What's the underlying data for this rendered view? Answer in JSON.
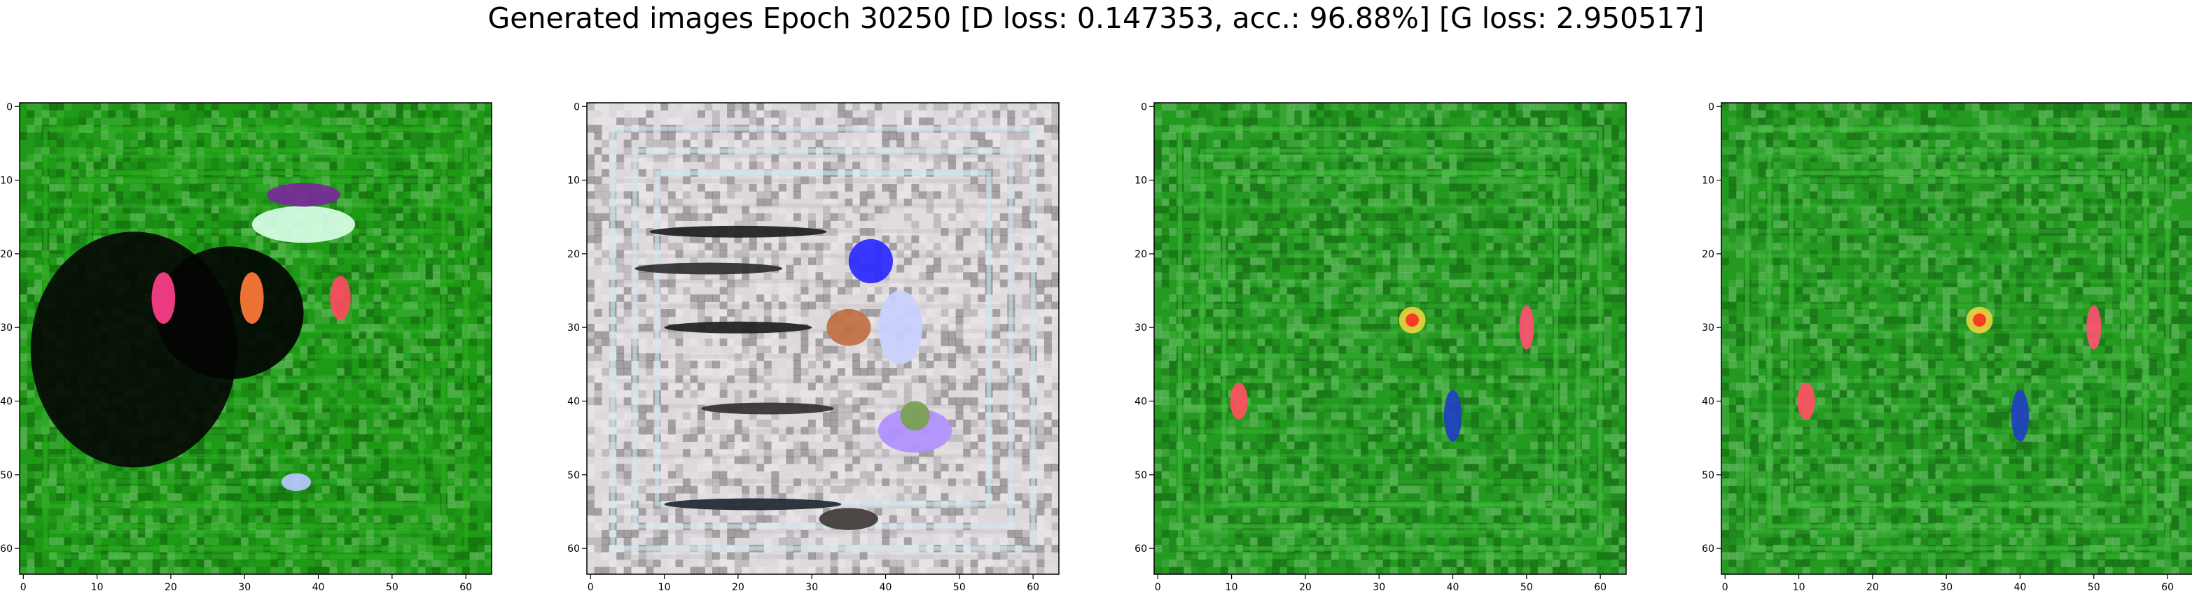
{
  "figure": {
    "title": "Generated images Epoch 30250 [D loss: 0.147353, acc.: 96.88%] [G loss: 2.950517]"
  },
  "chart_data": [
    {
      "type": "heatmap",
      "title": "",
      "xlabel": "",
      "ylabel": "",
      "xlim": [
        0,
        63
      ],
      "ylim": [
        63,
        0
      ],
      "xticks": [
        "0",
        "10",
        "20",
        "30",
        "40",
        "50",
        "60"
      ],
      "yticks": [
        "0",
        "10",
        "20",
        "30",
        "40",
        "50",
        "60"
      ],
      "image": {
        "background": "#1e9a16",
        "frame_color": "#2fb022",
        "blobs": [
          {
            "x": 15,
            "y": 33,
            "rx": 14,
            "ry": 16,
            "color": "#050805"
          },
          {
            "x": 28,
            "y": 28,
            "rx": 10,
            "ry": 9,
            "color": "#030503"
          },
          {
            "x": 19,
            "y": 26,
            "rx": 1.6,
            "ry": 3.5,
            "color": "#ff3f8a"
          },
          {
            "x": 31,
            "y": 26,
            "rx": 1.6,
            "ry": 3.5,
            "color": "#ff7a3a"
          },
          {
            "x": 43,
            "y": 26,
            "rx": 1.4,
            "ry": 3.0,
            "color": "#ff4a60"
          },
          {
            "x": 38,
            "y": 16,
            "rx": 7,
            "ry": 2.5,
            "color": "#d8ffe8"
          },
          {
            "x": 38,
            "y": 12,
            "rx": 5,
            "ry": 1.6,
            "color": "#7a2a9a"
          },
          {
            "x": 37,
            "y": 51,
            "rx": 2,
            "ry": 1.2,
            "color": "#b8c8ff"
          }
        ]
      }
    },
    {
      "type": "heatmap",
      "title": "",
      "xlabel": "",
      "ylabel": "",
      "xlim": [
        0,
        63
      ],
      "ylim": [
        63,
        0
      ],
      "xticks": [
        "0",
        "10",
        "20",
        "30",
        "40",
        "50",
        "60"
      ],
      "yticks": [
        "0",
        "10",
        "20",
        "30",
        "40",
        "50",
        "60"
      ],
      "image": {
        "background": "#ddd8dc",
        "frame_color": "#c9ecf2",
        "blobs": [
          {
            "x": 38,
            "y": 21,
            "rx": 3,
            "ry": 3,
            "color": "#2a28ff"
          },
          {
            "x": 35,
            "y": 30,
            "rx": 3,
            "ry": 2.5,
            "color": "#c07040"
          },
          {
            "x": 44,
            "y": 44,
            "rx": 5,
            "ry": 3,
            "color": "#b090ff"
          },
          {
            "x": 44,
            "y": 42,
            "rx": 2,
            "ry": 2,
            "color": "#7aa050"
          },
          {
            "x": 42,
            "y": 30,
            "rx": 3,
            "ry": 5,
            "color": "#c8d0ff"
          },
          {
            "x": 35,
            "y": 56,
            "rx": 4,
            "ry": 1.5,
            "color": "#403a38"
          },
          {
            "x": 20,
            "y": 17,
            "rx": 12,
            "ry": 0.8,
            "color": "#202020"
          },
          {
            "x": 16,
            "y": 22,
            "rx": 10,
            "ry": 0.8,
            "color": "#303030"
          },
          {
            "x": 20,
            "y": 30,
            "rx": 10,
            "ry": 0.8,
            "color": "#202020"
          },
          {
            "x": 24,
            "y": 41,
            "rx": 9,
            "ry": 0.8,
            "color": "#353030"
          },
          {
            "x": 22,
            "y": 54,
            "rx": 12,
            "ry": 0.8,
            "color": "#202830"
          }
        ]
      }
    },
    {
      "type": "heatmap",
      "title": "",
      "xlabel": "",
      "ylabel": "",
      "xlim": [
        0,
        63
      ],
      "ylim": [
        63,
        0
      ],
      "xticks": [
        "0",
        "10",
        "20",
        "30",
        "40",
        "50",
        "60"
      ],
      "yticks": [
        "0",
        "10",
        "20",
        "30",
        "40",
        "50",
        "60"
      ],
      "image": {
        "background": "#249a20",
        "frame_color": "#45c040",
        "blobs": [
          {
            "x": 34.5,
            "y": 29,
            "rx": 1.8,
            "ry": 1.8,
            "color": "#e8d040"
          },
          {
            "x": 34.5,
            "y": 29,
            "rx": 0.9,
            "ry": 0.9,
            "color": "#ff3020"
          },
          {
            "x": 50,
            "y": 30,
            "rx": 1,
            "ry": 3,
            "color": "#ff5070"
          },
          {
            "x": 11,
            "y": 40,
            "rx": 1.2,
            "ry": 2.5,
            "color": "#ff5060"
          },
          {
            "x": 40,
            "y": 42,
            "rx": 1.2,
            "ry": 3.5,
            "color": "#2040c0"
          }
        ]
      }
    },
    {
      "type": "heatmap",
      "title": "",
      "xlabel": "",
      "ylabel": "",
      "xlim": [
        0,
        63
      ],
      "ylim": [
        63,
        0
      ],
      "xticks": [
        "0",
        "10",
        "20",
        "30",
        "40",
        "50",
        "60"
      ],
      "yticks": [
        "0",
        "10",
        "20",
        "30",
        "40",
        "50",
        "60"
      ],
      "image": {
        "background": "#249a20",
        "frame_color": "#45c040",
        "blobs": [
          {
            "x": 34.5,
            "y": 29,
            "rx": 1.8,
            "ry": 1.8,
            "color": "#e8d040"
          },
          {
            "x": 34.5,
            "y": 29,
            "rx": 0.9,
            "ry": 0.9,
            "color": "#ff3020"
          },
          {
            "x": 50,
            "y": 30,
            "rx": 1,
            "ry": 3,
            "color": "#ff5070"
          },
          {
            "x": 11,
            "y": 40,
            "rx": 1.2,
            "ry": 2.5,
            "color": "#ff5060"
          },
          {
            "x": 40,
            "y": 42,
            "rx": 1.2,
            "ry": 3.5,
            "color": "#2040c0"
          }
        ]
      }
    }
  ]
}
